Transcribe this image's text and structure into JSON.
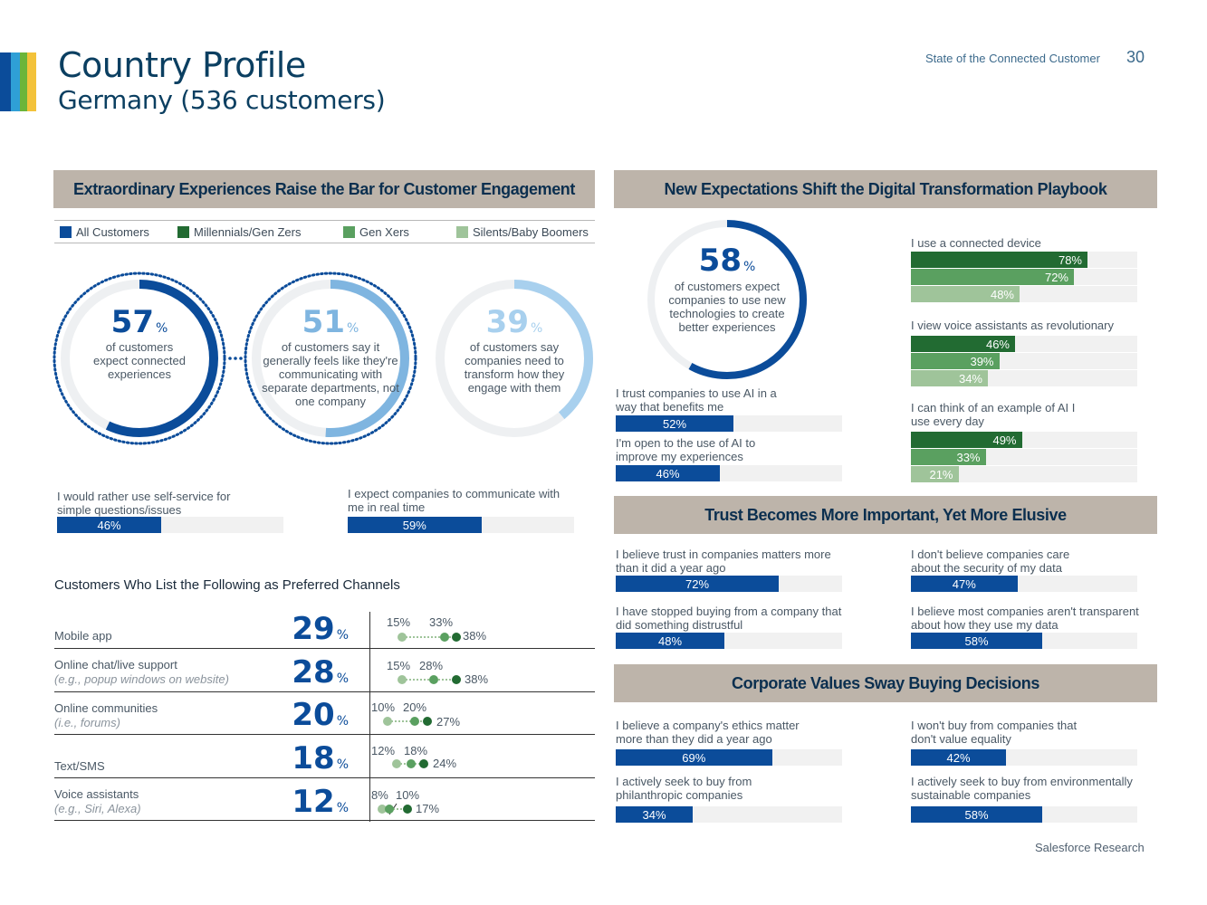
{
  "header": {
    "title": "Country Profile",
    "subtitle": "Germany (536 customers)",
    "report_name": "State of the Connected Customer",
    "page_number": "30"
  },
  "footer": {
    "text": "Salesforce Research"
  },
  "colors": {
    "all_customers": "#0b4c9a",
    "millennials": "#226b32",
    "gen_x": "#5aa060",
    "boomers": "#9fc49a",
    "header_bg": "#bdb4aa",
    "light_blue": "#7fb5e0"
  },
  "section1": {
    "title": "Extraordinary Experiences Raise the Bar for Customer Engagement",
    "legend": [
      "All Customers",
      "Millennials/Gen Zers",
      "Gen Xers",
      "Silents/Baby Boomers"
    ],
    "rings": [
      {
        "value": "57",
        "pct_sign": "%",
        "fraction": 0.57,
        "text": "of customers expect connected experiences"
      },
      {
        "value": "51",
        "pct_sign": "%",
        "fraction": 0.51,
        "text": "of customers say it generally feels like they're communicating with separate departments, not one company"
      },
      {
        "value": "39",
        "pct_sign": "%",
        "fraction": 0.39,
        "text": "of customers say companies need to transform how they engage with them"
      }
    ],
    "bars": [
      {
        "label": "I would rather use self-service for simple questions/issues",
        "value": 46,
        "text": "46%"
      },
      {
        "label": "I expect companies to communicate with me in real time",
        "value": 59,
        "text": "59%"
      }
    ]
  },
  "channels": {
    "title": "Customers Who List the Following as Preferred Channels",
    "rows": [
      {
        "label": "Mobile app",
        "sub": "",
        "value": "29",
        "pct_sign": "%",
        "boomers": "15%",
        "genx": "33%",
        "millennials": "38%"
      },
      {
        "label": "Online chat/live support",
        "sub": "(e.g., popup windows on website)",
        "value": "28",
        "pct_sign": "%",
        "boomers": "15%",
        "genx": "28%",
        "millennials": "38%"
      },
      {
        "label": "Online communities",
        "sub": "(i.e., forums)",
        "value": "20",
        "pct_sign": "%",
        "boomers": "10%",
        "genx": "20%",
        "millennials": "27%"
      },
      {
        "label": "Text/SMS",
        "sub": "",
        "value": "18",
        "pct_sign": "%",
        "boomers": "12%",
        "genx": "18%",
        "millennials": "24%"
      },
      {
        "label": "Voice assistants",
        "sub": "(e.g., Siri, Alexa)",
        "value": "12",
        "pct_sign": "%",
        "boomers": "8%",
        "genx": "10%",
        "millennials": "17%"
      }
    ]
  },
  "section2": {
    "title": "New Expectations Shift the Digital Transformation Playbook",
    "ring": {
      "value": "58",
      "pct_sign": "%",
      "fraction": 0.58,
      "text": "of customers expect companies to use new technologies to create better experiences"
    },
    "left_bars": [
      {
        "label": "I trust companies to use AI in a way that benefits me",
        "value": 52,
        "text": "52%"
      },
      {
        "label": "I'm open to the use of AI to improve my experiences",
        "value": 46,
        "text": "46%"
      }
    ],
    "groups": [
      {
        "label": "I use a connected device",
        "values": [
          {
            "value": 78,
            "text": "78%"
          },
          {
            "value": 72,
            "text": "72%"
          },
          {
            "value": 48,
            "text": "48%"
          }
        ]
      },
      {
        "label": "I view voice assistants as revolutionary",
        "values": [
          {
            "value": 46,
            "text": "46%"
          },
          {
            "value": 39,
            "text": "39%"
          },
          {
            "value": 34,
            "text": "34%"
          }
        ]
      },
      {
        "label": "I can think of an example of AI I use every day",
        "values": [
          {
            "value": 49,
            "text": "49%"
          },
          {
            "value": 33,
            "text": "33%"
          },
          {
            "value": 21,
            "text": "21%"
          }
        ]
      }
    ]
  },
  "section3": {
    "title": "Trust Becomes More Important, Yet More Elusive",
    "bars": [
      {
        "label": "I believe trust in companies matters more than it did a year ago",
        "value": 72,
        "text": "72%"
      },
      {
        "label": "I don't believe companies care about the security of my data",
        "value": 47,
        "text": "47%"
      },
      {
        "label": "I have stopped buying from a company that did something distrustful",
        "value": 48,
        "text": "48%"
      },
      {
        "label": "I believe most companies aren't transparent about how they use my data",
        "value": 58,
        "text": "58%"
      }
    ]
  },
  "section4": {
    "title": "Corporate Values Sway Buying Decisions",
    "bars": [
      {
        "label": "I believe a company's ethics matter more than they did a year ago",
        "value": 69,
        "text": "69%"
      },
      {
        "label": "I won't buy from companies that don't value equality",
        "value": 42,
        "text": "42%"
      },
      {
        "label": "I actively seek to buy from philanthropic companies",
        "value": 34,
        "text": "34%"
      },
      {
        "label": "I actively seek to buy from environmentally sustainable companies",
        "value": 58,
        "text": "58%"
      }
    ]
  }
}
